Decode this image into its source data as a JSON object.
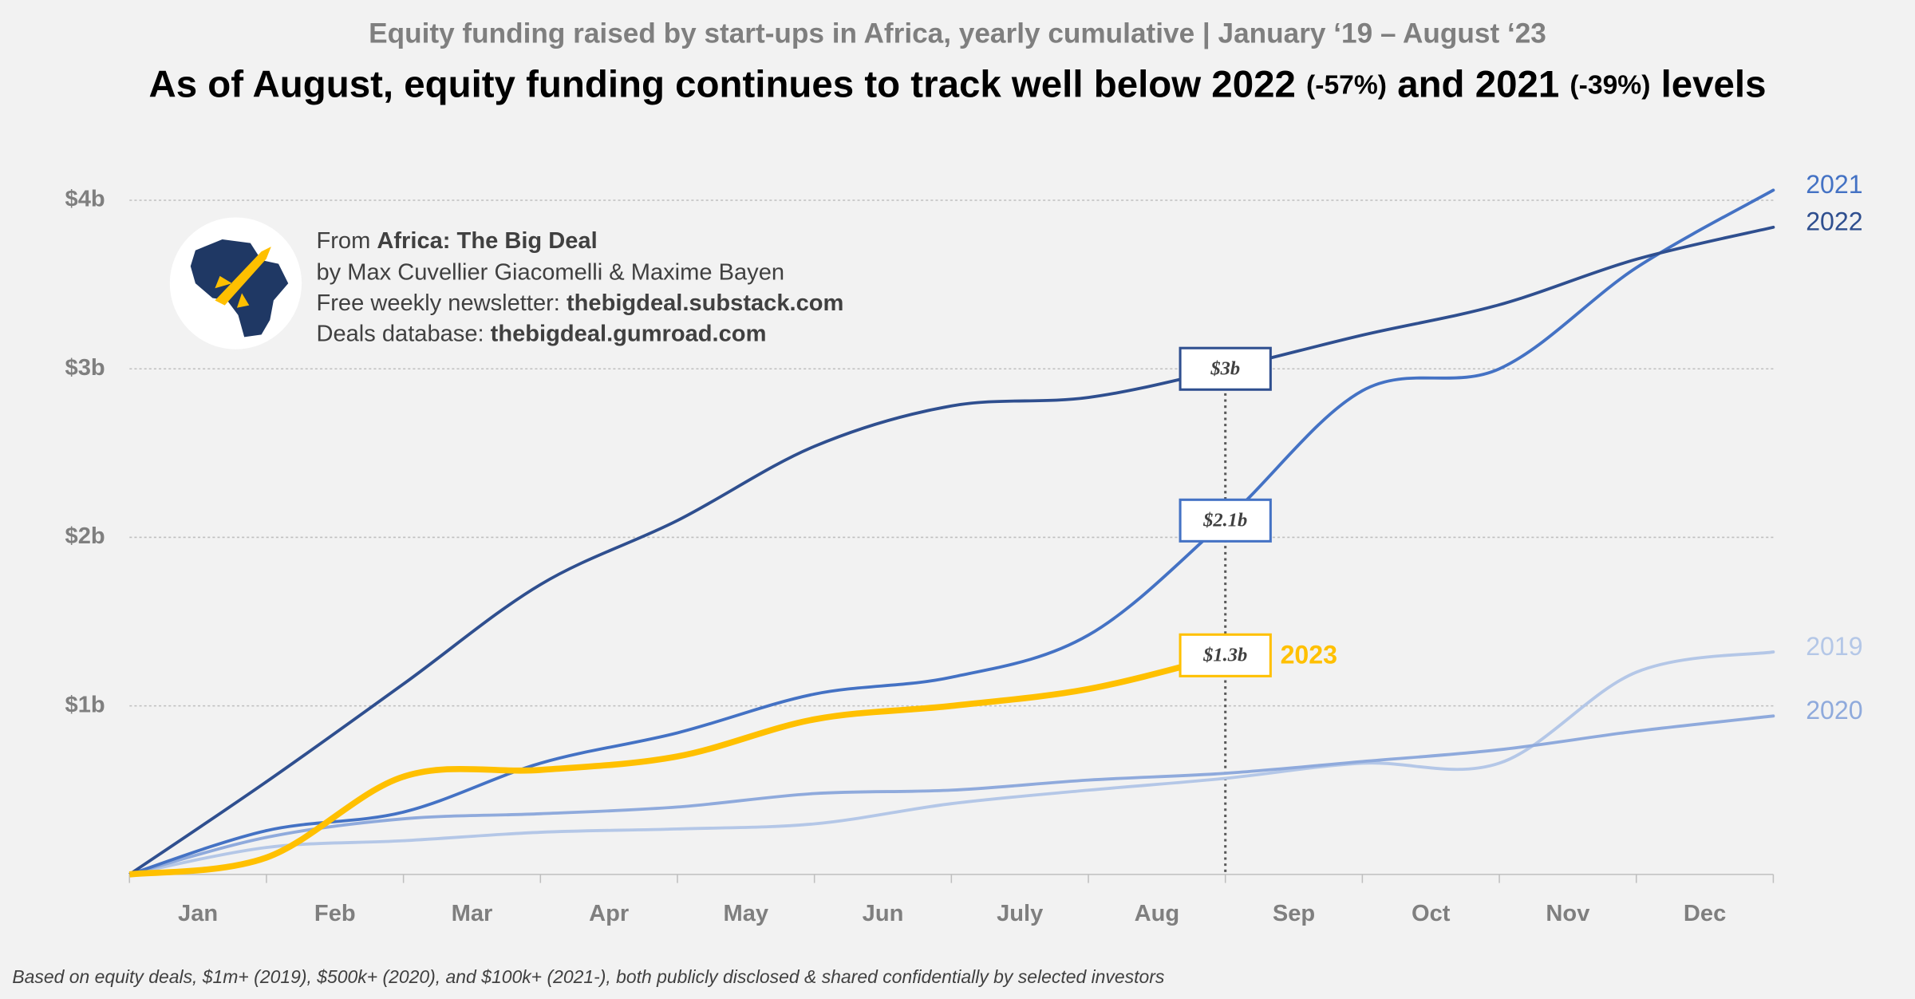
{
  "chart_data": {
    "type": "line",
    "subtitle": "Equity funding raised by start-ups in Africa, yearly cumulative | January ‘19 – August ‘23",
    "title_parts": [
      "As of August, equity funding continues to track well below 2022 ",
      "(-57%)",
      " and 2021 ",
      "(-39%)",
      " levels"
    ],
    "source": {
      "from": "From ",
      "name": "Africa: The Big Deal",
      "authors": "by Max Cuvellier Giacomelli & Maxime Bayen",
      "newsletter_label": "Free weekly newsletter: ",
      "newsletter": "thebigdeal.substack.com",
      "database_label": "Deals database: ",
      "database": "thebigdeal.gumroad.com"
    },
    "footnote": "Based on equity deals, $1m+ (2019), $500k+ (2020), and $100k+ (2021-), both publicly disclosed & shared confidentially by selected investors",
    "categories": [
      "Jan",
      "Feb",
      "Mar",
      "Apr",
      "May",
      "Jun",
      "July",
      "Aug",
      "Sep",
      "Oct",
      "Nov",
      "Dec"
    ],
    "ylim": [
      0,
      4.2
    ],
    "yticks": [
      {
        "value": 1,
        "label": "$1b"
      },
      {
        "value": 2,
        "label": "$2b"
      },
      {
        "value": 3,
        "label": "$3b"
      },
      {
        "value": 4,
        "label": "$4b"
      }
    ],
    "grid": true,
    "series": [
      {
        "name": "2019",
        "color": "#b4c7e7",
        "width": 2.5,
        "values": [
          0.16,
          0.2,
          0.25,
          0.27,
          0.3,
          0.42,
          0.5,
          0.57,
          0.66,
          0.66,
          1.2,
          1.32
        ]
      },
      {
        "name": "2020",
        "color": "#8faadc",
        "width": 2.5,
        "values": [
          0.22,
          0.33,
          0.36,
          0.4,
          0.48,
          0.5,
          0.56,
          0.6,
          0.67,
          0.74,
          0.85,
          0.94
        ]
      },
      {
        "name": "2021",
        "color": "#4472c4",
        "width": 2.5,
        "values": [
          0.26,
          0.37,
          0.66,
          0.84,
          1.07,
          1.17,
          1.42,
          2.1,
          2.87,
          3.0,
          3.6,
          4.06
        ],
        "value_labels": [
          null,
          null,
          null,
          null,
          null,
          null,
          null,
          "$2.1b",
          null,
          null,
          null,
          null
        ]
      },
      {
        "name": "2022",
        "color": "#2f4f8f",
        "width": 2.5,
        "values": [
          0.55,
          1.13,
          1.72,
          2.1,
          2.54,
          2.78,
          2.83,
          3.0,
          3.2,
          3.38,
          3.65,
          3.84
        ],
        "value_labels": [
          null,
          null,
          null,
          null,
          null,
          null,
          null,
          "$3b",
          null,
          null,
          null,
          null
        ]
      },
      {
        "name": "2023",
        "color": "#ffc000",
        "width": 5,
        "values": [
          0.1,
          0.58,
          0.62,
          0.7,
          0.92,
          1.0,
          1.1,
          1.3,
          null,
          null,
          null,
          null
        ],
        "value_labels": [
          null,
          null,
          null,
          null,
          null,
          null,
          null,
          "$1.3b",
          null,
          null,
          null,
          null
        ]
      }
    ]
  }
}
